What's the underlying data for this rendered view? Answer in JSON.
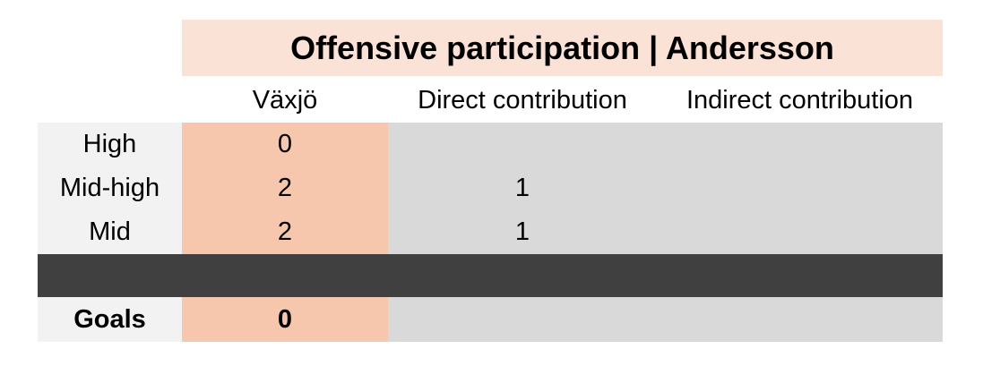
{
  "title": "Offensive participation | Andersson",
  "columns": [
    "Växjö",
    "Direct contribution",
    "Indirect contribution"
  ],
  "rows": [
    {
      "label": "High",
      "cells": [
        0
      ]
    },
    {
      "label": "Mid-high",
      "cells": [
        2,
        1
      ]
    },
    {
      "label": "Mid",
      "cells": [
        2,
        1
      ]
    }
  ],
  "total": {
    "label": "Goals",
    "cells": [
      0
    ]
  }
}
